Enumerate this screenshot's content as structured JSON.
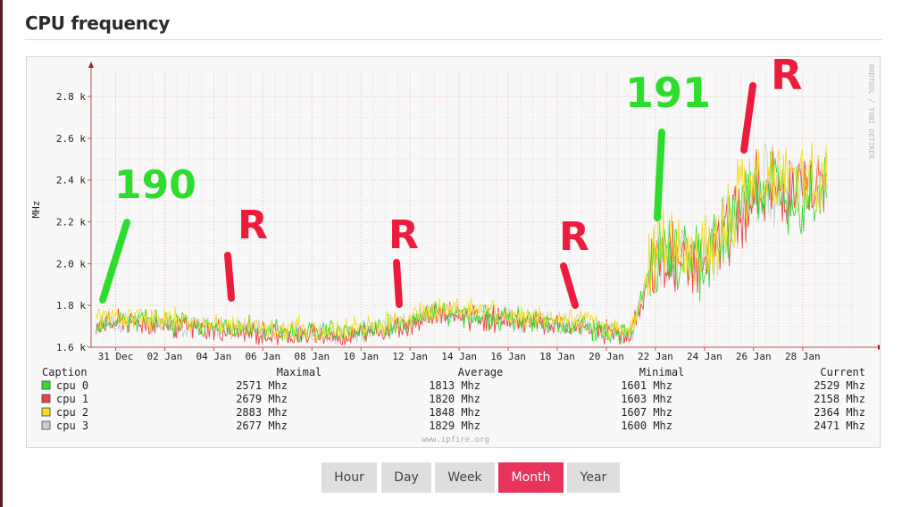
{
  "page": {
    "title": "CPU frequency"
  },
  "chart_data": {
    "type": "line",
    "title": "",
    "ylabel": "MHz",
    "xlabel": "",
    "ylim": [
      1600,
      2900
    ],
    "y_ticks": [
      {
        "value": 1600,
        "label": "1.6 k"
      },
      {
        "value": 1800,
        "label": "1.8 k"
      },
      {
        "value": 2000,
        "label": "2.0 k"
      },
      {
        "value": 2200,
        "label": "2.2 k"
      },
      {
        "value": 2400,
        "label": "2.4 k"
      },
      {
        "value": 2600,
        "label": "2.6 k"
      },
      {
        "value": 2800,
        "label": "2.8 k"
      }
    ],
    "x_ticks": [
      {
        "date": "2019-12-31",
        "label": "31 Dec"
      },
      {
        "date": "2020-01-02",
        "label": "02 Jan"
      },
      {
        "date": "2020-01-04",
        "label": "04 Jan"
      },
      {
        "date": "2020-01-06",
        "label": "06 Jan"
      },
      {
        "date": "2020-01-08",
        "label": "08 Jan"
      },
      {
        "date": "2020-01-10",
        "label": "10 Jan"
      },
      {
        "date": "2020-01-12",
        "label": "12 Jan"
      },
      {
        "date": "2020-01-14",
        "label": "14 Jan"
      },
      {
        "date": "2020-01-16",
        "label": "16 Jan"
      },
      {
        "date": "2020-01-18",
        "label": "18 Jan"
      },
      {
        "date": "2020-01-20",
        "label": "20 Jan"
      },
      {
        "date": "2020-01-22",
        "label": "22 Jan"
      },
      {
        "date": "2020-01-24",
        "label": "24 Jan"
      },
      {
        "date": "2020-01-26",
        "label": "26 Jan"
      },
      {
        "date": "2020-01-28",
        "label": "28 Jan"
      }
    ],
    "x": [
      "2019-12-30",
      "2020-01-01",
      "2020-01-03",
      "2020-01-05",
      "2020-01-07",
      "2020-01-09",
      "2020-01-11",
      "2020-01-13",
      "2020-01-15",
      "2020-01-17",
      "2020-01-19",
      "2020-01-21",
      "2020-01-22",
      "2020-01-24",
      "2020-01-26",
      "2020-01-28",
      "2020-01-29"
    ],
    "series": [
      {
        "name": "cpu 0",
        "color": "#33dd33",
        "values": [
          1720,
          1730,
          1700,
          1690,
          1680,
          1670,
          1690,
          1770,
          1740,
          1720,
          1700,
          1660,
          2050,
          2000,
          2380,
          2350,
          2400
        ]
      },
      {
        "name": "cpu 1",
        "color": "#ee4444",
        "values": [
          1710,
          1720,
          1690,
          1670,
          1660,
          1650,
          1680,
          1760,
          1740,
          1710,
          1690,
          1650,
          2020,
          2000,
          2350,
          2330,
          2380
        ]
      },
      {
        "name": "cpu 2",
        "color": "#f2dd22",
        "values": [
          1740,
          1750,
          1720,
          1700,
          1690,
          1680,
          1710,
          1790,
          1770,
          1740,
          1720,
          1680,
          2080,
          2050,
          2420,
          2400,
          2430
        ]
      },
      {
        "name": "cpu 3",
        "color": "#cccccc",
        "values": [
          1720,
          1730,
          1700,
          1690,
          1670,
          1660,
          1690,
          1770,
          1750,
          1720,
          1700,
          1660,
          2040,
          2010,
          2390,
          2360,
          2400
        ]
      }
    ],
    "legend": {
      "headers": [
        "Caption",
        "Maximal",
        "Average",
        "Minimal",
        "Current"
      ],
      "rows": [
        {
          "caption": "cpu 0",
          "color": "#33dd33",
          "maximal": "2571 Mhz",
          "average": "1813 Mhz",
          "minimal": "1601 Mhz",
          "current": "2529 Mhz"
        },
        {
          "caption": "cpu 1",
          "color": "#ee4444",
          "maximal": "2679 Mhz",
          "average": "1820 Mhz",
          "minimal": "1603 Mhz",
          "current": "2158 Mhz"
        },
        {
          "caption": "cpu 2",
          "color": "#f2dd22",
          "maximal": "2883 Mhz",
          "average": "1848 Mhz",
          "minimal": "1607 Mhz",
          "current": "2364 Mhz"
        },
        {
          "caption": "cpu 3",
          "color": "#cccccc",
          "maximal": "2677 Mhz",
          "average": "1829 Mhz",
          "minimal": "1600 Mhz",
          "current": "2471 Mhz"
        }
      ]
    },
    "watermark": "RRDTOOL / TOBI OETIKER",
    "footer": "www.ipfire.org",
    "annotations": [
      "190",
      "R",
      "R",
      "R",
      "191",
      "R"
    ],
    "grid": true
  },
  "range_buttons": [
    {
      "label": "Hour",
      "active": false
    },
    {
      "label": "Day",
      "active": false
    },
    {
      "label": "Week",
      "active": false
    },
    {
      "label": "Month",
      "active": true
    },
    {
      "label": "Year",
      "active": false
    }
  ]
}
